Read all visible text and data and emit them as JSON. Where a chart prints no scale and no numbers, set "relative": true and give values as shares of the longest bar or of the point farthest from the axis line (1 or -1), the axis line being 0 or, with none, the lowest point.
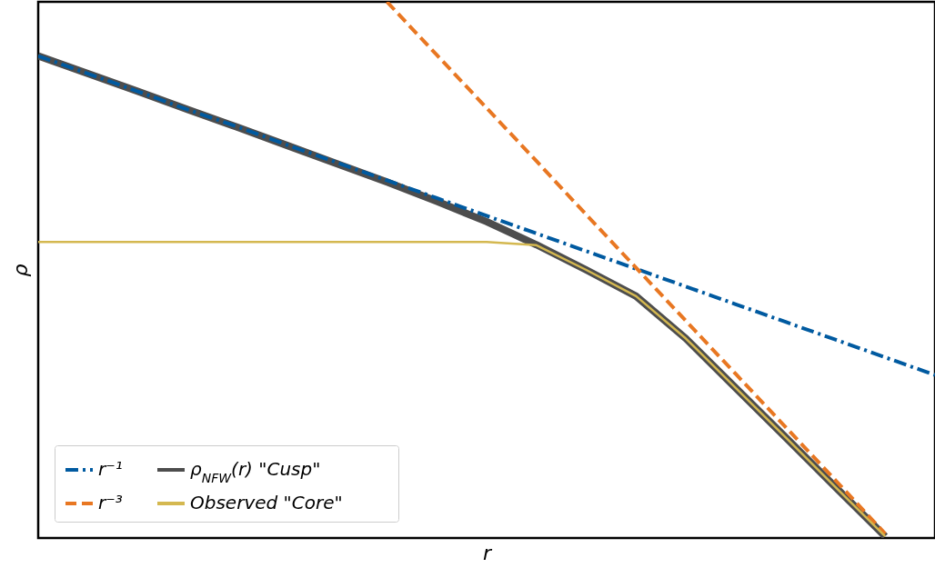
{
  "chart_data": {
    "type": "line",
    "xlabel": "r",
    "ylabel": "ρ",
    "relative": true,
    "tick_labels": false,
    "grid": false,
    "legend": "bottom left",
    "marker": "none",
    "categories": [
      null,
      null,
      null,
      null,
      null,
      null,
      null,
      null,
      null,
      null,
      null,
      null,
      null,
      null,
      null,
      null,
      null,
      null,
      null
    ],
    "series": [
      {
        "name": "r⁻¹",
        "color": "#005aa0",
        "line_style": "dashdot",
        "values": [
          0.899,
          0.866,
          0.833,
          0.799,
          0.767,
          0.733,
          0.7,
          0.667,
          0.634,
          0.601,
          0.568,
          0.535,
          0.502,
          0.469,
          0.436,
          0.403,
          0.37,
          0.337,
          0.304
        ]
      },
      {
        "name": "r⁻³",
        "color": "#e87722",
        "line_style": "dashed",
        "values": [
          null,
          null,
          null,
          null,
          null,
          null,
          null,
          1.0,
          0.901,
          0.802,
          0.703,
          0.603,
          0.504,
          0.405,
          0.306,
          0.207,
          0.108,
          0.008,
          null
        ]
      },
      {
        "name": "ρ$_{NFW}$(r) \"Cusp\"",
        "color": "#4d4d4d",
        "line_style": "solid",
        "values": [
          0.899,
          0.866,
          0.833,
          0.799,
          0.766,
          0.732,
          0.698,
          0.664,
          0.628,
          0.59,
          0.547,
          0.5,
          0.451,
          0.372,
          0.28,
          0.188,
          0.095,
          0.003,
          null
        ]
      },
      {
        "name": "Observed \"Core\"",
        "color": "#d4b850",
        "line_style": "solid",
        "values": [
          0.552,
          0.552,
          0.552,
          0.552,
          0.552,
          0.552,
          0.552,
          0.552,
          0.552,
          0.552,
          0.546,
          0.5,
          0.451,
          0.372,
          0.28,
          0.188,
          0.095,
          0.003,
          null
        ]
      }
    ]
  }
}
